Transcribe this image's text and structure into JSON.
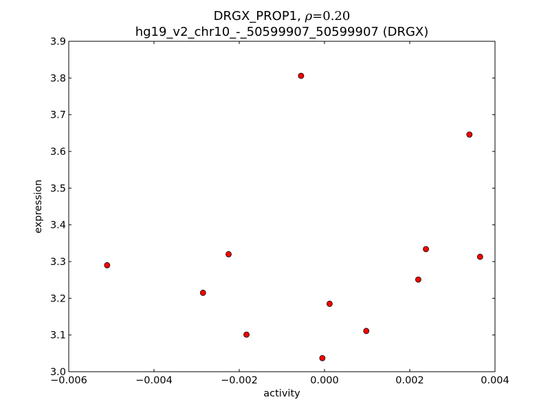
{
  "chart_data": {
    "type": "scatter",
    "title_line1_prefix": "DRGX_PROP1, ",
    "title_line1_rho_symbol": "ρ",
    "title_line1_rho_value": "=0.20",
    "title_line2": "hg19_v2_chr10_-_50599907_50599907 (DRGX)",
    "xlabel": "activity",
    "ylabel": "expression",
    "xlim": [
      -0.006,
      0.004
    ],
    "ylim": [
      3.0,
      3.9
    ],
    "xticks": [
      -0.006,
      -0.004,
      -0.002,
      0.0,
      0.002,
      0.004
    ],
    "xtick_labels": [
      "−0.006",
      "−0.004",
      "−0.002",
      "0.000",
      "0.002",
      "0.004"
    ],
    "yticks": [
      3.0,
      3.1,
      3.2,
      3.3,
      3.4,
      3.5,
      3.6,
      3.7,
      3.8,
      3.9
    ],
    "ytick_labels": [
      "3.0",
      "3.1",
      "3.2",
      "3.3",
      "3.4",
      "3.5",
      "3.6",
      "3.7",
      "3.8",
      "3.9"
    ],
    "grid": false,
    "marker_color": "#ff0000",
    "marker_edge_color": "#000000",
    "points": [
      {
        "x": -0.0051,
        "y": 3.29
      },
      {
        "x": -0.00285,
        "y": 3.215
      },
      {
        "x": -0.00225,
        "y": 3.32
      },
      {
        "x": -0.00183,
        "y": 3.101
      },
      {
        "x": -0.00055,
        "y": 3.806
      },
      {
        "x": -5e-05,
        "y": 3.037
      },
      {
        "x": 0.00012,
        "y": 3.185
      },
      {
        "x": 0.00098,
        "y": 3.111
      },
      {
        "x": 0.0022,
        "y": 3.251
      },
      {
        "x": 0.00238,
        "y": 3.334
      },
      {
        "x": 0.0034,
        "y": 3.646
      },
      {
        "x": 0.00365,
        "y": 3.313
      }
    ]
  }
}
